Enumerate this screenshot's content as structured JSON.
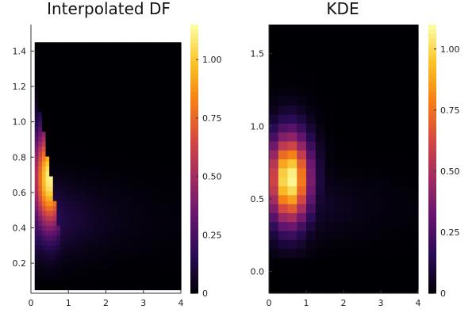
{
  "chart_data": [
    {
      "type": "heatmap",
      "title": "Interpolated DF",
      "xlabel": "",
      "ylabel": "",
      "xlim": [
        0,
        4
      ],
      "ylim": [
        0.03,
        1.55
      ],
      "data_extent": {
        "x": [
          0.1,
          4.0
        ],
        "y": [
          0.05,
          1.45
        ]
      },
      "x_ticks": [
        "0",
        "1",
        "2",
        "3",
        "4"
      ],
      "y_ticks": [
        "0.2",
        "0.4",
        "0.6",
        "0.8",
        "1.0",
        "1.2",
        "1.4"
      ],
      "colorbar": {
        "range": [
          0,
          1.15
        ],
        "ticks": [
          "0",
          "0.25",
          "0.50",
          "0.75",
          "1.00"
        ],
        "colormap": "inferno"
      },
      "peak": {
        "x": 0.6,
        "y": 0.67,
        "value": 1.15
      },
      "grid": false,
      "legend": "none"
    },
    {
      "type": "heatmap",
      "title": "KDE",
      "xlabel": "",
      "ylabel": "",
      "xlim": [
        0,
        4
      ],
      "ylim": [
        -0.15,
        1.7
      ],
      "data_extent": {
        "x": [
          0.0,
          4.0
        ],
        "y": [
          -0.15,
          1.7
        ]
      },
      "x_ticks": [
        "0",
        "1",
        "2",
        "3",
        "4"
      ],
      "y_ticks": [
        "0.0",
        "0.5",
        "1.0",
        "1.5"
      ],
      "colorbar": {
        "range": [
          0,
          1.1
        ],
        "ticks": [
          "0",
          "0.25",
          "0.50",
          "0.75",
          "1.00"
        ],
        "colormap": "inferno"
      },
      "peak": {
        "x": 0.7,
        "y": 0.62,
        "value": 1.1
      },
      "grid": false,
      "legend": "none"
    }
  ]
}
